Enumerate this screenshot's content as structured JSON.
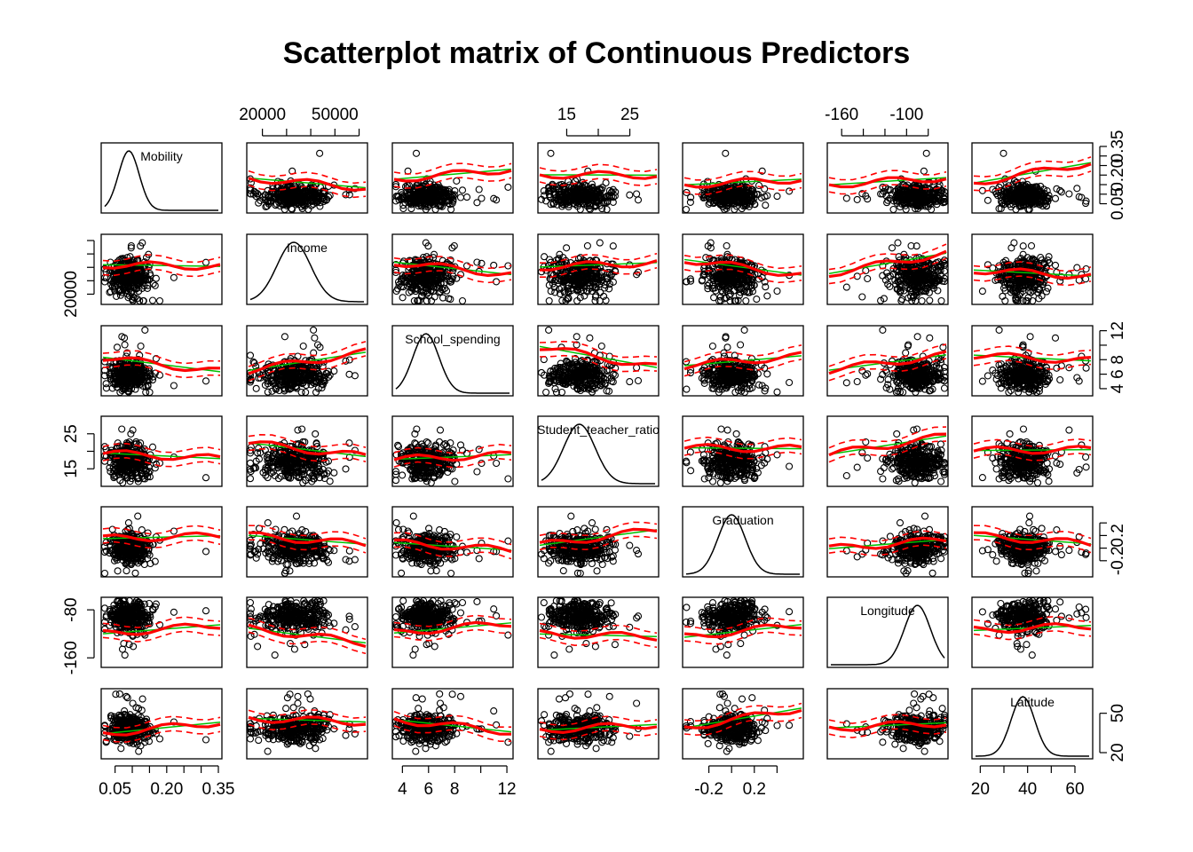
{
  "chart_data": {
    "type": "scatter",
    "subtype": "scatterplot-matrix",
    "title": "Scatterplot matrix of Continuous Predictors",
    "variables": [
      {
        "name": "Mobility",
        "range": [
          0.02,
          0.35
        ],
        "ticks": [
          0.05,
          0.2,
          0.35
        ],
        "tick_labels": [
          "0.05",
          "0.20",
          "0.35"
        ],
        "minor_ticks": [
          0.05,
          0.1,
          0.15,
          0.2,
          0.25,
          0.3,
          0.35
        ],
        "label_axes": [
          "bottom",
          "right"
        ],
        "mean": 0.09,
        "sd": 0.03
      },
      {
        "name": "Income",
        "range": [
          15000,
          62000
        ],
        "ticks": [
          20000,
          50000
        ],
        "tick_labels": [
          "20000",
          "50000"
        ],
        "minor_ticks": [
          20000,
          30000,
          40000,
          50000,
          60000
        ],
        "label_axes": [
          "top",
          "left"
        ],
        "mean": 33000,
        "sd": 7000
      },
      {
        "name": "School_spending",
        "range": [
          3.5,
          12.2
        ],
        "ticks": [
          4,
          6,
          8,
          12
        ],
        "tick_labels": [
          "4",
          "6",
          "8",
          "12"
        ],
        "minor_ticks": [
          4,
          6,
          8,
          10,
          12
        ],
        "label_axes": [
          "bottom",
          "right"
        ],
        "mean": 5.8,
        "sd": 1.0
      },
      {
        "name": "Student_teacher_ratio",
        "range": [
          11,
          29
        ],
        "ticks": [
          15,
          25
        ],
        "tick_labels": [
          "15",
          "25"
        ],
        "minor_ticks": [
          15,
          20,
          25
        ],
        "label_axes": [
          "top",
          "left"
        ],
        "mean": 17,
        "sd": 2.5
      },
      {
        "name": "Graduation",
        "range": [
          -0.4,
          0.6
        ],
        "ticks": [
          -0.2,
          0.2
        ],
        "tick_labels": [
          "-0.2",
          "0.2"
        ],
        "minor_ticks": [
          -0.2,
          0,
          0.2,
          0.4
        ],
        "label_axes": [
          "bottom",
          "right"
        ],
        "mean": 0.0,
        "sd": 0.12
      },
      {
        "name": "Longitude",
        "range": [
          -170,
          -65
        ],
        "ticks": [
          -160,
          -100
        ],
        "tick_labels": [
          "-160",
          "-100"
        ],
        "minor_ticks": [
          -160,
          -140,
          -120,
          -100,
          -80
        ],
        "label_axes": [
          "top",
          "left"
        ],
        "y_tick_labels": [
          "-80",
          "-160"
        ],
        "y_ticks": [
          -80,
          -160
        ],
        "mean": -90,
        "sd": 12
      },
      {
        "name": "Latitude",
        "range": [
          18,
          66
        ],
        "ticks": [
          20,
          40,
          60
        ],
        "tick_labels": [
          "20",
          "40",
          "60"
        ],
        "minor_ticks": [
          20,
          30,
          40,
          50,
          60
        ],
        "label_axes": [
          "bottom",
          "right"
        ],
        "y_ticks": [
          20,
          50
        ],
        "y_tick_labels": [
          "20",
          "50"
        ],
        "mean": 38,
        "sd": 5
      }
    ],
    "income_left_ticks": {
      "ticks": [
        20000
      ],
      "tick_labels": [
        "20000"
      ]
    },
    "upper_left_tick_note": "",
    "diagonal": "density",
    "off_diagonal": "scatter with smoother",
    "points": {
      "shape": "open-circle",
      "color": "#000000",
      "n_per_panel": 320
    },
    "smoother": {
      "color": "#ff0000",
      "spread_style": "dashed",
      "linear_fit_color": "#00c000"
    },
    "grid": false,
    "legend": "none"
  }
}
